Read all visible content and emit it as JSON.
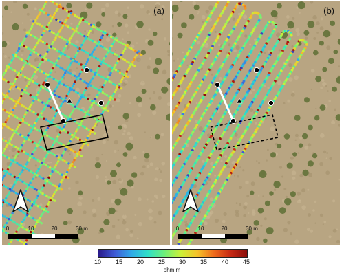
{
  "panels": [
    {
      "label": "(a)",
      "mode": "grid",
      "box_dash": ""
    },
    {
      "label": "(b)",
      "mode": "lines",
      "box_dash": "4,3"
    }
  ],
  "scalebar": {
    "ticks": [
      "0",
      "10",
      "20",
      "30 m"
    ]
  },
  "colorbar": {
    "ticks": [
      "10",
      "15",
      "20",
      "25",
      "30",
      "35",
      "40",
      "45"
    ],
    "unit": "ohm m",
    "vmin": 10,
    "vmax": 45,
    "colormap": [
      "#2a1a8a",
      "#3f5bd6",
      "#2fa9e8",
      "#2fe0c8",
      "#6df07a",
      "#cdf038",
      "#f5c22a",
      "#ee6a1c",
      "#c72a14",
      "#8a0d0a"
    ]
  },
  "map": {
    "survey_color_range": [
      10,
      45
    ],
    "background": "aerial imagery of orchard field",
    "symbols": [
      "black-dots",
      "white-line",
      "black-triangle",
      "solid-box",
      "dashed-box",
      "north-arrow"
    ]
  },
  "colors": {
    "field": "#b8a582",
    "field_light": "#cbb896",
    "tree": "#5d6e35",
    "box": "#000000",
    "line": "#ffffff"
  }
}
